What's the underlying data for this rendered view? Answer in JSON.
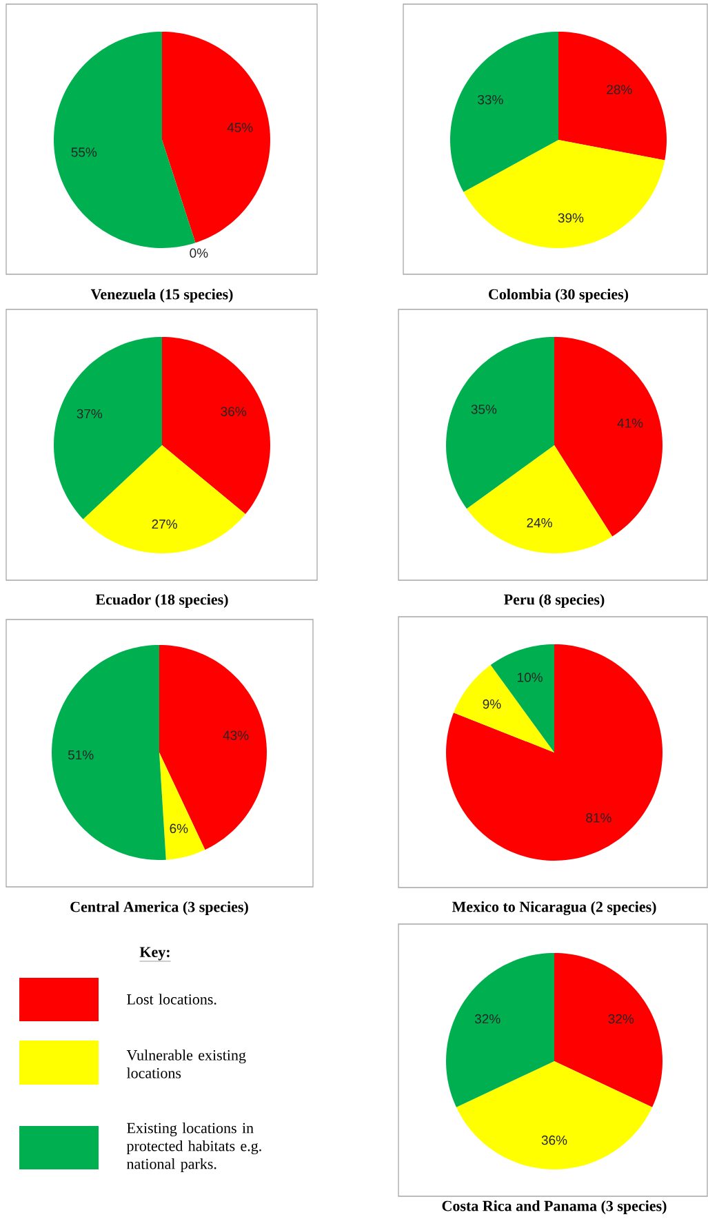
{
  "chart_data": [
    {
      "type": "pie",
      "title": "Venezuela (15 species)",
      "categories": [
        null,
        null,
        null
      ],
      "values": [
        45,
        0,
        55
      ],
      "value_labels": [
        "45%",
        "0%",
        "55%"
      ],
      "colors": [
        "#ff0000",
        "#ffff00",
        "#00b050"
      ]
    },
    {
      "type": "pie",
      "title": "Colombia (30 species)",
      "categories": [
        null,
        null,
        null
      ],
      "values": [
        28,
        39,
        33
      ],
      "value_labels": [
        "28%",
        "39%",
        "33%"
      ],
      "colors": [
        "#ff0000",
        "#ffff00",
        "#00b050"
      ]
    },
    {
      "type": "pie",
      "title": "Ecuador (18 species)",
      "categories": [
        null,
        null,
        null
      ],
      "values": [
        36,
        27,
        37
      ],
      "value_labels": [
        "36%",
        "27%",
        "37%"
      ],
      "colors": [
        "#ff0000",
        "#ffff00",
        "#00b050"
      ]
    },
    {
      "type": "pie",
      "title": "Peru (8 species)",
      "categories": [
        null,
        null,
        null
      ],
      "values": [
        41,
        24,
        35
      ],
      "value_labels": [
        "41%",
        "24%",
        "35%"
      ],
      "colors": [
        "#ff0000",
        "#ffff00",
        "#00b050"
      ]
    },
    {
      "type": "pie",
      "title": "Central America (3 species)",
      "categories": [
        null,
        null,
        null
      ],
      "values": [
        43,
        6,
        51
      ],
      "value_labels": [
        "43%",
        "6%",
        "51%"
      ],
      "colors": [
        "#ff0000",
        "#ffff00",
        "#00b050"
      ]
    },
    {
      "type": "pie",
      "title": "Mexico to Nicaragua (2 species)",
      "categories": [
        null,
        null,
        null
      ],
      "values": [
        81,
        9,
        10
      ],
      "value_labels": [
        "81%",
        "9%",
        "10%"
      ],
      "colors": [
        "#ff0000",
        "#ffff00",
        "#00b050"
      ]
    },
    {
      "type": "other",
      "legend_title": "Key:",
      "annotations": [
        "Lost locations.",
        "Vulnerable existing locations",
        "Existing locations in protected habitats e.g. national parks."
      ],
      "colors": [
        "#ff0000",
        "#ffff00",
        "#00b050"
      ]
    },
    {
      "type": "pie",
      "title": "Costa Rica and Panama (3 species)",
      "categories": [
        null,
        null,
        null
      ],
      "values": [
        32,
        36,
        32
      ],
      "value_labels": [
        "32%",
        "36%",
        "32%"
      ],
      "colors": [
        "#ff0000",
        "#ffff00",
        "#00b050"
      ]
    }
  ]
}
